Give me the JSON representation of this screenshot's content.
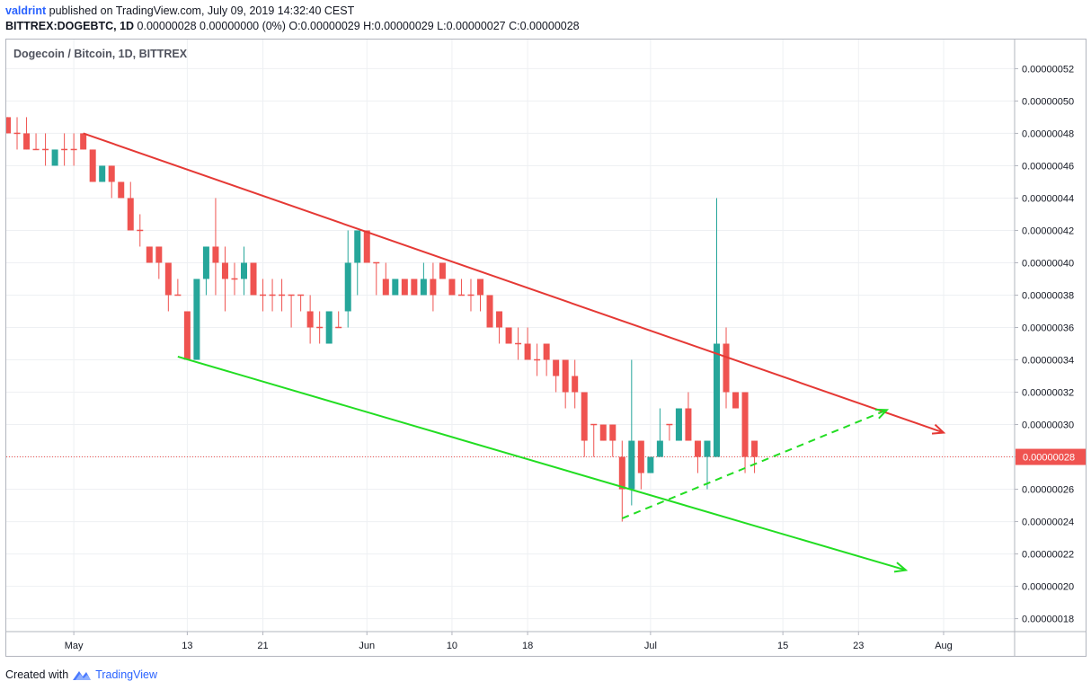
{
  "header": {
    "username": "valdrint",
    "published_text": "published on TradingView.com, July 09, 2019 14:32:40 CEST",
    "symbol": "BITTREX:DOGEBTC, 1D",
    "ohlc_text": "0.00000028 0.00000000 (0%) O:0.00000029 H:0.00000029 L:0.00000027 C:0.00000028"
  },
  "footer": {
    "created_with": "Created with",
    "brand": "TradingView",
    "logo_icon": "tradingview-logo-icon"
  },
  "chart_data": {
    "type": "candlestick",
    "title": "Dogecoin / Bitcoin, 1D, BITTREX",
    "ylim": [
      1.72e-07,
      5.38e-07
    ],
    "y_ticks": [
      "0.00000018",
      "0.00000020",
      "0.00000022",
      "0.00000024",
      "0.00000026",
      "0.00000028",
      "0.00000030",
      "0.00000032",
      "0.00000034",
      "0.00000036",
      "0.00000038",
      "0.00000040",
      "0.00000042",
      "0.00000044",
      "0.00000046",
      "0.00000048",
      "0.00000050",
      "0.00000052"
    ],
    "x_ticks": [
      {
        "label": "May",
        "date": "2019-05-01"
      },
      {
        "label": "13",
        "date": "2019-05-13"
      },
      {
        "label": "21",
        "date": "2019-05-21"
      },
      {
        "label": "Jun",
        "date": "2019-06-01"
      },
      {
        "label": "10",
        "date": "2019-06-10"
      },
      {
        "label": "18",
        "date": "2019-06-18"
      },
      {
        "label": "Jul",
        "date": "2019-07-01"
      },
      {
        "label": "15",
        "date": "2019-07-15"
      },
      {
        "label": "23",
        "date": "2019-07-23"
      },
      {
        "label": "Aug",
        "date": "2019-08-01"
      }
    ],
    "last_price": "0.00000028",
    "last_price_value": 2.8e-07,
    "colors": {
      "up": "#26a69a",
      "down": "#ef5350",
      "resistance": "#e53935",
      "support": "#22dd22",
      "price_line": "#ef5350",
      "grid": "#eef0f3"
    },
    "candles": [
      {
        "date": "2019-04-24",
        "o": 4.9e-07,
        "h": 4.9e-07,
        "l": 4.8e-07,
        "c": 4.8e-07
      },
      {
        "date": "2019-04-25",
        "o": 4.8e-07,
        "h": 4.9e-07,
        "l": 4.7e-07,
        "c": 4.8e-07
      },
      {
        "date": "2019-04-26",
        "o": 4.8e-07,
        "h": 4.9e-07,
        "l": 4.7e-07,
        "c": 4.7e-07
      },
      {
        "date": "2019-04-27",
        "o": 4.7e-07,
        "h": 4.8e-07,
        "l": 4.7e-07,
        "c": 4.7e-07
      },
      {
        "date": "2019-04-28",
        "o": 4.7e-07,
        "h": 4.8e-07,
        "l": 4.6e-07,
        "c": 4.7e-07
      },
      {
        "date": "2019-04-29",
        "o": 4.6e-07,
        "h": 4.7e-07,
        "l": 4.6e-07,
        "c": 4.7e-07
      },
      {
        "date": "2019-04-30",
        "o": 4.7e-07,
        "h": 4.8e-07,
        "l": 4.6e-07,
        "c": 4.7e-07
      },
      {
        "date": "2019-05-01",
        "o": 4.7e-07,
        "h": 4.8e-07,
        "l": 4.6e-07,
        "c": 4.7e-07
      },
      {
        "date": "2019-05-02",
        "o": 4.8e-07,
        "h": 4.8e-07,
        "l": 4.7e-07,
        "c": 4.7e-07
      },
      {
        "date": "2019-05-03",
        "o": 4.7e-07,
        "h": 4.7e-07,
        "l": 4.5e-07,
        "c": 4.5e-07
      },
      {
        "date": "2019-05-04",
        "o": 4.5e-07,
        "h": 4.6e-07,
        "l": 4.5e-07,
        "c": 4.6e-07
      },
      {
        "date": "2019-05-05",
        "o": 4.6e-07,
        "h": 4.6e-07,
        "l": 4.4e-07,
        "c": 4.5e-07
      },
      {
        "date": "2019-05-06",
        "o": 4.5e-07,
        "h": 4.5e-07,
        "l": 4.4e-07,
        "c": 4.4e-07
      },
      {
        "date": "2019-05-07",
        "o": 4.4e-07,
        "h": 4.5e-07,
        "l": 4.2e-07,
        "c": 4.2e-07
      },
      {
        "date": "2019-05-08",
        "o": 4.2e-07,
        "h": 4.3e-07,
        "l": 4.1e-07,
        "c": 4.2e-07
      },
      {
        "date": "2019-05-09",
        "o": 4.1e-07,
        "h": 4.1e-07,
        "l": 4e-07,
        "c": 4e-07
      },
      {
        "date": "2019-05-10",
        "o": 4.1e-07,
        "h": 4.1e-07,
        "l": 3.9e-07,
        "c": 4e-07
      },
      {
        "date": "2019-05-11",
        "o": 4e-07,
        "h": 4e-07,
        "l": 3.7e-07,
        "c": 3.8e-07
      },
      {
        "date": "2019-05-12",
        "o": 3.8e-07,
        "h": 3.9e-07,
        "l": 3.8e-07,
        "c": 3.8e-07
      },
      {
        "date": "2019-05-13",
        "o": 3.7e-07,
        "h": 3.7e-07,
        "l": 3.4e-07,
        "c": 3.4e-07
      },
      {
        "date": "2019-05-14",
        "o": 3.4e-07,
        "h": 3.9e-07,
        "l": 3.4e-07,
        "c": 3.9e-07
      },
      {
        "date": "2019-05-15",
        "o": 3.9e-07,
        "h": 4.1e-07,
        "l": 3.8e-07,
        "c": 4.1e-07
      },
      {
        "date": "2019-05-16",
        "o": 4.1e-07,
        "h": 4.4e-07,
        "l": 3.8e-07,
        "c": 4e-07
      },
      {
        "date": "2019-05-17",
        "o": 4e-07,
        "h": 4.1e-07,
        "l": 3.7e-07,
        "c": 3.9e-07
      },
      {
        "date": "2019-05-18",
        "o": 3.9e-07,
        "h": 4e-07,
        "l": 3.8e-07,
        "c": 3.9e-07
      },
      {
        "date": "2019-05-19",
        "o": 3.9e-07,
        "h": 4.1e-07,
        "l": 3.8e-07,
        "c": 4e-07
      },
      {
        "date": "2019-05-20",
        "o": 4e-07,
        "h": 4e-07,
        "l": 3.8e-07,
        "c": 3.8e-07
      },
      {
        "date": "2019-05-21",
        "o": 3.8e-07,
        "h": 3.9e-07,
        "l": 3.7e-07,
        "c": 3.8e-07
      },
      {
        "date": "2019-05-22",
        "o": 3.8e-07,
        "h": 3.9e-07,
        "l": 3.7e-07,
        "c": 3.8e-07
      },
      {
        "date": "2019-05-23",
        "o": 3.8e-07,
        "h": 3.9e-07,
        "l": 3.7e-07,
        "c": 3.8e-07
      },
      {
        "date": "2019-05-24",
        "o": 3.8e-07,
        "h": 3.8e-07,
        "l": 3.6e-07,
        "c": 3.8e-07
      },
      {
        "date": "2019-05-25",
        "o": 3.8e-07,
        "h": 3.8e-07,
        "l": 3.7e-07,
        "c": 3.8e-07
      },
      {
        "date": "2019-05-26",
        "o": 3.7e-07,
        "h": 3.8e-07,
        "l": 3.5e-07,
        "c": 3.6e-07
      },
      {
        "date": "2019-05-27",
        "o": 3.6e-07,
        "h": 3.7e-07,
        "l": 3.5e-07,
        "c": 3.6e-07
      },
      {
        "date": "2019-05-28",
        "o": 3.5e-07,
        "h": 3.7e-07,
        "l": 3.5e-07,
        "c": 3.7e-07
      },
      {
        "date": "2019-05-29",
        "o": 3.6e-07,
        "h": 3.7e-07,
        "l": 3.6e-07,
        "c": 3.6e-07
      },
      {
        "date": "2019-05-30",
        "o": 3.7e-07,
        "h": 4.2e-07,
        "l": 3.6e-07,
        "c": 4e-07
      },
      {
        "date": "2019-05-31",
        "o": 4e-07,
        "h": 4.2e-07,
        "l": 3.8e-07,
        "c": 4.2e-07
      },
      {
        "date": "2019-06-01",
        "o": 4.2e-07,
        "h": 4.2e-07,
        "l": 4e-07,
        "c": 4e-07
      },
      {
        "date": "2019-06-02",
        "o": 4e-07,
        "h": 4e-07,
        "l": 3.8e-07,
        "c": 4e-07
      },
      {
        "date": "2019-06-03",
        "o": 3.9e-07,
        "h": 4e-07,
        "l": 3.8e-07,
        "c": 3.8e-07
      },
      {
        "date": "2019-06-04",
        "o": 3.8e-07,
        "h": 3.9e-07,
        "l": 3.8e-07,
        "c": 3.9e-07
      },
      {
        "date": "2019-06-05",
        "o": 3.9e-07,
        "h": 3.9e-07,
        "l": 3.8e-07,
        "c": 3.8e-07
      },
      {
        "date": "2019-06-06",
        "o": 3.9e-07,
        "h": 3.9e-07,
        "l": 3.8e-07,
        "c": 3.8e-07
      },
      {
        "date": "2019-06-07",
        "o": 3.8e-07,
        "h": 4e-07,
        "l": 3.8e-07,
        "c": 3.9e-07
      },
      {
        "date": "2019-06-08",
        "o": 3.9e-07,
        "h": 4e-07,
        "l": 3.7e-07,
        "c": 3.8e-07
      },
      {
        "date": "2019-06-09",
        "o": 4e-07,
        "h": 4e-07,
        "l": 3.9e-07,
        "c": 3.9e-07
      },
      {
        "date": "2019-06-10",
        "o": 3.9e-07,
        "h": 3.9e-07,
        "l": 3.8e-07,
        "c": 3.8e-07
      },
      {
        "date": "2019-06-11",
        "o": 3.8e-07,
        "h": 3.9e-07,
        "l": 3.8e-07,
        "c": 3.8e-07
      },
      {
        "date": "2019-06-12",
        "o": 3.8e-07,
        "h": 3.9e-07,
        "l": 3.7e-07,
        "c": 3.8e-07
      },
      {
        "date": "2019-06-13",
        "o": 3.9e-07,
        "h": 3.9e-07,
        "l": 3.7e-07,
        "c": 3.8e-07
      },
      {
        "date": "2019-06-14",
        "o": 3.8e-07,
        "h": 3.8e-07,
        "l": 3.6e-07,
        "c": 3.6e-07
      },
      {
        "date": "2019-06-15",
        "o": 3.7e-07,
        "h": 3.7e-07,
        "l": 3.5e-07,
        "c": 3.6e-07
      },
      {
        "date": "2019-06-16",
        "o": 3.6e-07,
        "h": 3.6e-07,
        "l": 3.5e-07,
        "c": 3.5e-07
      },
      {
        "date": "2019-06-17",
        "o": 3.5e-07,
        "h": 3.6e-07,
        "l": 3.4e-07,
        "c": 3.5e-07
      },
      {
        "date": "2019-06-18",
        "o": 3.5e-07,
        "h": 3.6e-07,
        "l": 3.4e-07,
        "c": 3.4e-07
      },
      {
        "date": "2019-06-19",
        "o": 3.4e-07,
        "h": 3.5e-07,
        "l": 3.3e-07,
        "c": 3.4e-07
      },
      {
        "date": "2019-06-20",
        "o": 3.5e-07,
        "h": 3.5e-07,
        "l": 3.3e-07,
        "c": 3.4e-07
      },
      {
        "date": "2019-06-21",
        "o": 3.4e-07,
        "h": 3.4e-07,
        "l": 3.2e-07,
        "c": 3.3e-07
      },
      {
        "date": "2019-06-22",
        "o": 3.4e-07,
        "h": 3.4e-07,
        "l": 3.1e-07,
        "c": 3.2e-07
      },
      {
        "date": "2019-06-23",
        "o": 3.3e-07,
        "h": 3.4e-07,
        "l": 3.1e-07,
        "c": 3.2e-07
      },
      {
        "date": "2019-06-24",
        "o": 3.2e-07,
        "h": 3.2e-07,
        "l": 2.8e-07,
        "c": 2.9e-07
      },
      {
        "date": "2019-06-25",
        "o": 3e-07,
        "h": 3e-07,
        "l": 2.8e-07,
        "c": 3e-07
      },
      {
        "date": "2019-06-26",
        "o": 3e-07,
        "h": 3e-07,
        "l": 2.9e-07,
        "c": 2.9e-07
      },
      {
        "date": "2019-06-27",
        "o": 3e-07,
        "h": 3e-07,
        "l": 2.8e-07,
        "c": 2.9e-07
      },
      {
        "date": "2019-06-28",
        "o": 2.8e-07,
        "h": 2.9e-07,
        "l": 2.4e-07,
        "c": 2.6e-07
      },
      {
        "date": "2019-06-29",
        "o": 2.6e-07,
        "h": 3.4e-07,
        "l": 2.5e-07,
        "c": 2.9e-07
      },
      {
        "date": "2019-06-30",
        "o": 2.9e-07,
        "h": 2.9e-07,
        "l": 2.6e-07,
        "c": 2.7e-07
      },
      {
        "date": "2019-07-01",
        "o": 2.7e-07,
        "h": 2.8e-07,
        "l": 2.7e-07,
        "c": 2.8e-07
      },
      {
        "date": "2019-07-02",
        "o": 2.8e-07,
        "h": 3.1e-07,
        "l": 2.8e-07,
        "c": 2.9e-07
      },
      {
        "date": "2019-07-03",
        "o": 3e-07,
        "h": 3e-07,
        "l": 2.9e-07,
        "c": 3e-07
      },
      {
        "date": "2019-07-04",
        "o": 2.9e-07,
        "h": 3.1e-07,
        "l": 2.9e-07,
        "c": 3.1e-07
      },
      {
        "date": "2019-07-05",
        "o": 3.1e-07,
        "h": 3.2e-07,
        "l": 2.9e-07,
        "c": 2.9e-07
      },
      {
        "date": "2019-07-06",
        "o": 2.9e-07,
        "h": 2.9e-07,
        "l": 2.7e-07,
        "c": 2.8e-07
      },
      {
        "date": "2019-07-07",
        "o": 2.8e-07,
        "h": 2.9e-07,
        "l": 2.6e-07,
        "c": 2.9e-07
      },
      {
        "date": "2019-07-08",
        "o": 2.8e-07,
        "h": 4.4e-07,
        "l": 2.8e-07,
        "c": 3.5e-07
      },
      {
        "date": "2019-07-09",
        "o": 3.5e-07,
        "h": 3.6e-07,
        "l": 3.1e-07,
        "c": 3.2e-07
      },
      {
        "date": "2019-07-10",
        "o": 3.2e-07,
        "h": 3.2e-07,
        "l": 3.1e-07,
        "c": 3.1e-07
      },
      {
        "date": "2019-07-11",
        "o": 3.2e-07,
        "h": 3.2e-07,
        "l": 2.7e-07,
        "c": 2.8e-07
      },
      {
        "date": "2019-07-12",
        "o": 2.9e-07,
        "h": 2.9e-07,
        "l": 2.7e-07,
        "c": 2.8e-07
      }
    ],
    "trendlines": [
      {
        "name": "resistance",
        "color": "#e53935",
        "style": "solid",
        "arrow": true,
        "start": {
          "date": "2019-05-02",
          "value": 4.8e-07
        },
        "end": {
          "date": "2019-08-01",
          "value": 2.95e-07
        }
      },
      {
        "name": "support",
        "color": "#22dd22",
        "style": "solid",
        "arrow": true,
        "start": {
          "date": "2019-05-12",
          "value": 3.42e-07
        },
        "end": {
          "date": "2019-07-28",
          "value": 2.1e-07
        }
      },
      {
        "name": "rising-support",
        "color": "#22dd22",
        "style": "dashed",
        "arrow": true,
        "start": {
          "date": "2019-06-28",
          "value": 2.42e-07
        },
        "end": {
          "date": "2019-07-26",
          "value": 3.09e-07
        }
      }
    ]
  }
}
